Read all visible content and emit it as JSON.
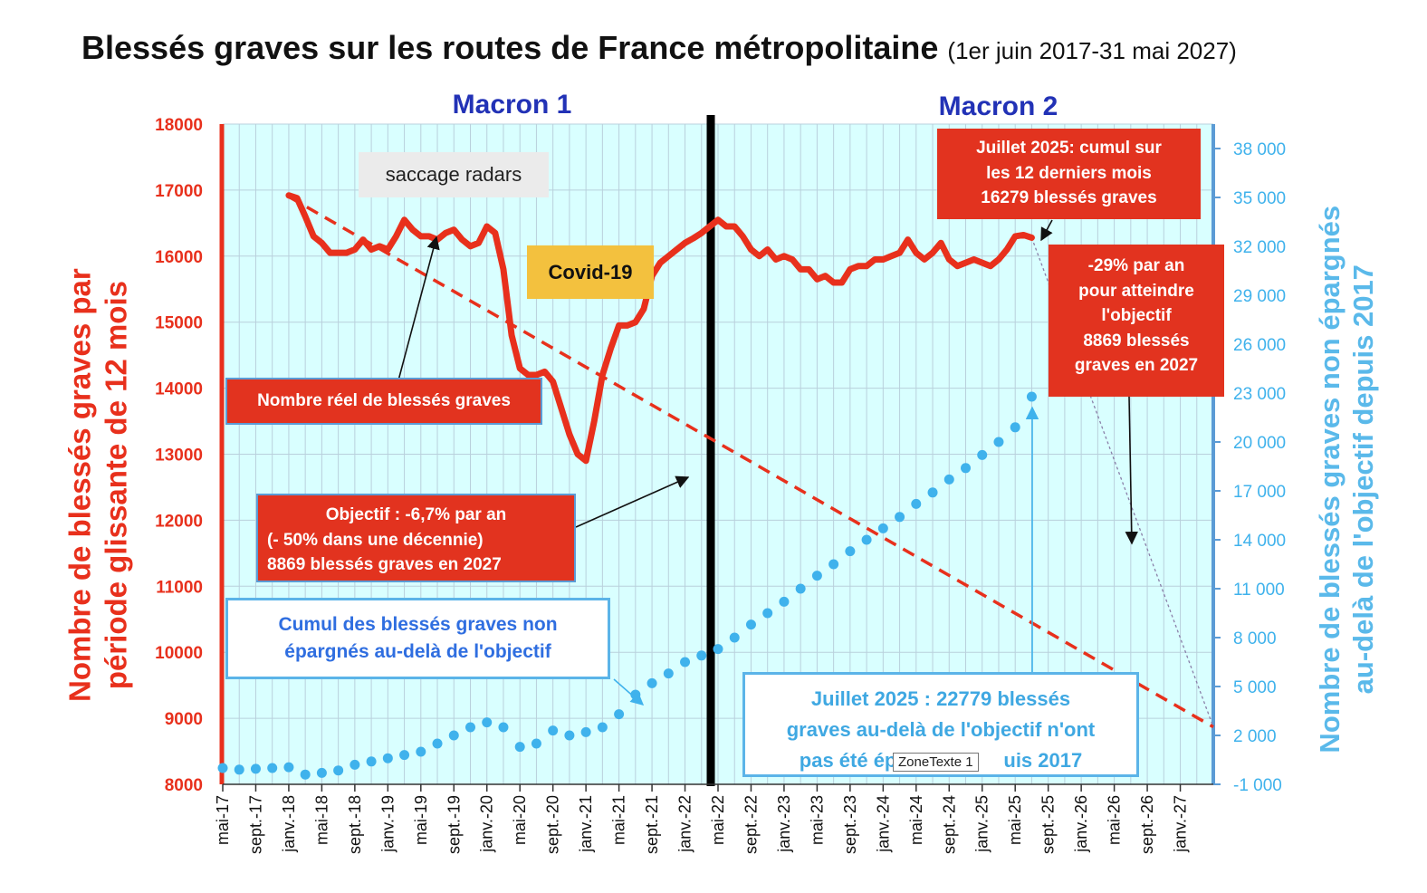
{
  "header": {
    "title": "Blessés graves sur les routes de France métropolitaine",
    "subtitle": "(1er juin 2017-31 mai 2027)"
  },
  "periods": [
    "Macron 1",
    "Macron 2"
  ],
  "colors": {
    "plot_bg": "#d9ffff",
    "grid": "#b9d0dc",
    "actual_line": "#e8301c",
    "objective_line": "#e8301c",
    "cumul_dots": "#3fb2ec",
    "left_axis": "#e8301c",
    "right_axis": "#5b9bd5",
    "period_title": "#2232b6"
  },
  "annotations": {
    "saccage": "saccage radars",
    "covid": "Covid-19",
    "nombre_reel": "Nombre réel de blessés graves",
    "objectif_1": "Objectif : -6,7% par an",
    "objectif_2": "(- 50% dans une décennie)",
    "objectif_3": "8869 blessés graves en 2027",
    "cumul_1": "Cumul des blessés graves non",
    "cumul_2": "épargnés  au-delà de l'objectif",
    "juillet_1": "Juillet 2025: cumul sur",
    "juillet_2": "les 12 derniers mois",
    "juillet_3": "16279 blessés graves",
    "pct_1": "-29% par an",
    "pct_2": "pour atteindre",
    "pct_3": "l'objectif",
    "pct_4": "8869 blessés",
    "pct_5": "graves en 2027",
    "juillet_b1": "Juillet 2025 : 22779 blessés",
    "juillet_b2": "graves au-delà de l'objectif n'ont",
    "juillet_b3": "pas été ép",
    "juillet_b4": "uis 2017",
    "zonetexte": "ZoneTexte 1"
  },
  "chart_data": {
    "type": "line",
    "title": "Blessés graves sur les routes de France métropolitaine",
    "ylabel_left": [
      "Nombre de blessés graves par",
      "période glissante de 12 mois"
    ],
    "ylabel_right": [
      "Nombre de blessés graves non épargnés",
      "au-delà de l'objectif depuis 2017"
    ],
    "ylim_left": [
      8000,
      18000
    ],
    "ylim_right": [
      -1000,
      39500
    ],
    "yticks_left": [
      8000,
      9000,
      10000,
      11000,
      12000,
      13000,
      14000,
      15000,
      16000,
      17000,
      18000
    ],
    "yticks_right": [
      "-1 000",
      "2 000",
      "5 000",
      "8 000",
      "11 000",
      "14 000",
      "17 000",
      "20 000",
      "23 000",
      "26 000",
      "29 000",
      "32 000",
      "35 000",
      "38 000"
    ],
    "yticks_right_values": [
      -1000,
      2000,
      5000,
      8000,
      11000,
      14000,
      17000,
      20000,
      23000,
      26000,
      29000,
      32000,
      35000,
      38000
    ],
    "x_start": "2017-05",
    "x_end": "2027-05",
    "x_tick_labels": [
      "mai-17",
      "sept.-17",
      "janv.-18",
      "mai-18",
      "sept.-18",
      "janv.-19",
      "mai-19",
      "sept.-19",
      "janv.-20",
      "mai-20",
      "sept.-20",
      "janv.-21",
      "mai-21",
      "sept.-21",
      "janv.-22",
      "mai-22",
      "sept.-22",
      "janv.-23",
      "mai-23",
      "sept.-23",
      "janv.-24",
      "mai-24",
      "sept.-24",
      "janv.-25",
      "mai-25",
      "sept.-25",
      "janv.-26",
      "mai-26",
      "sept.-26",
      "janv.-27"
    ],
    "period_divider": "2022-05",
    "series": [
      {
        "name": "Nombre réel de blessés graves",
        "axis": "left",
        "style": "solid",
        "points": [
          [
            "2018-01",
            16920
          ],
          [
            "2018-02",
            16880
          ],
          [
            "2018-03",
            16600
          ],
          [
            "2018-04",
            16300
          ],
          [
            "2018-05",
            16200
          ],
          [
            "2018-06",
            16050
          ],
          [
            "2018-07",
            16050
          ],
          [
            "2018-08",
            16050
          ],
          [
            "2018-09",
            16100
          ],
          [
            "2018-10",
            16250
          ],
          [
            "2018-11",
            16100
          ],
          [
            "2018-12",
            16150
          ],
          [
            "2019-01",
            16100
          ],
          [
            "2019-02",
            16300
          ],
          [
            "2019-03",
            16550
          ],
          [
            "2019-04",
            16400
          ],
          [
            "2019-05",
            16300
          ],
          [
            "2019-06",
            16300
          ],
          [
            "2019-07",
            16250
          ],
          [
            "2019-08",
            16350
          ],
          [
            "2019-09",
            16400
          ],
          [
            "2019-10",
            16250
          ],
          [
            "2019-11",
            16150
          ],
          [
            "2019-12",
            16200
          ],
          [
            "2020-01",
            16450
          ],
          [
            "2020-02",
            16350
          ],
          [
            "2020-03",
            15800
          ],
          [
            "2020-04",
            14800
          ],
          [
            "2020-05",
            14300
          ],
          [
            "2020-06",
            14200
          ],
          [
            "2020-07",
            14200
          ],
          [
            "2020-08",
            14250
          ],
          [
            "2020-09",
            14100
          ],
          [
            "2020-10",
            13700
          ],
          [
            "2020-11",
            13300
          ],
          [
            "2020-12",
            13000
          ],
          [
            "2021-01",
            12900
          ],
          [
            "2021-02",
            13500
          ],
          [
            "2021-03",
            14200
          ],
          [
            "2021-04",
            14600
          ],
          [
            "2021-05",
            14950
          ],
          [
            "2021-06",
            14950
          ],
          [
            "2021-07",
            15000
          ],
          [
            "2021-08",
            15200
          ],
          [
            "2021-09",
            15700
          ],
          [
            "2021-10",
            15900
          ],
          [
            "2021-11",
            16000
          ],
          [
            "2021-12",
            16100
          ],
          [
            "2022-01",
            16200
          ],
          [
            "2022-02",
            16270
          ],
          [
            "2022-03",
            16350
          ],
          [
            "2022-04",
            16450
          ],
          [
            "2022-05",
            16550
          ],
          [
            "2022-06",
            16450
          ],
          [
            "2022-07",
            16450
          ],
          [
            "2022-08",
            16300
          ],
          [
            "2022-09",
            16100
          ],
          [
            "2022-10",
            16000
          ],
          [
            "2022-11",
            16100
          ],
          [
            "2022-12",
            15950
          ],
          [
            "2023-01",
            16000
          ],
          [
            "2023-02",
            15950
          ],
          [
            "2023-03",
            15800
          ],
          [
            "2023-04",
            15800
          ],
          [
            "2023-05",
            15650
          ],
          [
            "2023-06",
            15700
          ],
          [
            "2023-07",
            15600
          ],
          [
            "2023-08",
            15600
          ],
          [
            "2023-09",
            15800
          ],
          [
            "2023-10",
            15850
          ],
          [
            "2023-11",
            15850
          ],
          [
            "2023-12",
            15950
          ],
          [
            "2024-01",
            15950
          ],
          [
            "2024-02",
            16000
          ],
          [
            "2024-03",
            16050
          ],
          [
            "2024-04",
            16250
          ],
          [
            "2024-05",
            16050
          ],
          [
            "2024-06",
            15950
          ],
          [
            "2024-07",
            16050
          ],
          [
            "2024-08",
            16200
          ],
          [
            "2024-09",
            15950
          ],
          [
            "2024-10",
            15850
          ],
          [
            "2024-11",
            15900
          ],
          [
            "2024-12",
            15950
          ],
          [
            "2025-01",
            15900
          ],
          [
            "2025-02",
            15850
          ],
          [
            "2025-03",
            15950
          ],
          [
            "2025-04",
            16100
          ],
          [
            "2025-05",
            16300
          ],
          [
            "2025-06",
            16320
          ],
          [
            "2025-07",
            16279
          ]
        ]
      },
      {
        "name": "Objectif : -6,7% par an",
        "axis": "left",
        "style": "dashed",
        "points": [
          [
            "2018-01",
            16900
          ],
          [
            "2027-05",
            8869
          ]
        ]
      },
      {
        "name": "-29% par an",
        "axis": "left",
        "style": "dotted",
        "points": [
          [
            "2025-07",
            16279
          ],
          [
            "2027-05",
            8869
          ]
        ]
      },
      {
        "name": "Cumul des blessés graves non épargnés au-delà de l'objectif",
        "axis": "right",
        "style": "dots",
        "points": [
          [
            "2017-05",
            0
          ],
          [
            "2017-07",
            -100
          ],
          [
            "2017-09",
            -50
          ],
          [
            "2017-11",
            0
          ],
          [
            "2018-01",
            50
          ],
          [
            "2018-03",
            -400
          ],
          [
            "2018-05",
            -300
          ],
          [
            "2018-07",
            -150
          ],
          [
            "2018-09",
            200
          ],
          [
            "2018-11",
            400
          ],
          [
            "2019-01",
            600
          ],
          [
            "2019-03",
            800
          ],
          [
            "2019-05",
            1000
          ],
          [
            "2019-07",
            1500
          ],
          [
            "2019-09",
            2000
          ],
          [
            "2019-11",
            2500
          ],
          [
            "2020-01",
            2800
          ],
          [
            "2020-03",
            2500
          ],
          [
            "2020-05",
            1300
          ],
          [
            "2020-07",
            1500
          ],
          [
            "2020-09",
            2300
          ],
          [
            "2020-11",
            2000
          ],
          [
            "2021-01",
            2200
          ],
          [
            "2021-03",
            2500
          ],
          [
            "2021-05",
            3300
          ],
          [
            "2021-07",
            4500
          ],
          [
            "2021-09",
            5200
          ],
          [
            "2021-11",
            5800
          ],
          [
            "2022-01",
            6500
          ],
          [
            "2022-03",
            6900
          ],
          [
            "2022-05",
            7300
          ],
          [
            "2022-07",
            8000
          ],
          [
            "2022-09",
            8800
          ],
          [
            "2022-11",
            9500
          ],
          [
            "2023-01",
            10200
          ],
          [
            "2023-03",
            11000
          ],
          [
            "2023-05",
            11800
          ],
          [
            "2023-07",
            12500
          ],
          [
            "2023-09",
            13300
          ],
          [
            "2023-11",
            14000
          ],
          [
            "2024-01",
            14700
          ],
          [
            "2024-03",
            15400
          ],
          [
            "2024-05",
            16200
          ],
          [
            "2024-07",
            16900
          ],
          [
            "2024-09",
            17700
          ],
          [
            "2024-11",
            18400
          ],
          [
            "2025-01",
            19200
          ],
          [
            "2025-03",
            20000
          ],
          [
            "2025-05",
            20900
          ],
          [
            "2025-07",
            22779
          ]
        ]
      }
    ]
  }
}
